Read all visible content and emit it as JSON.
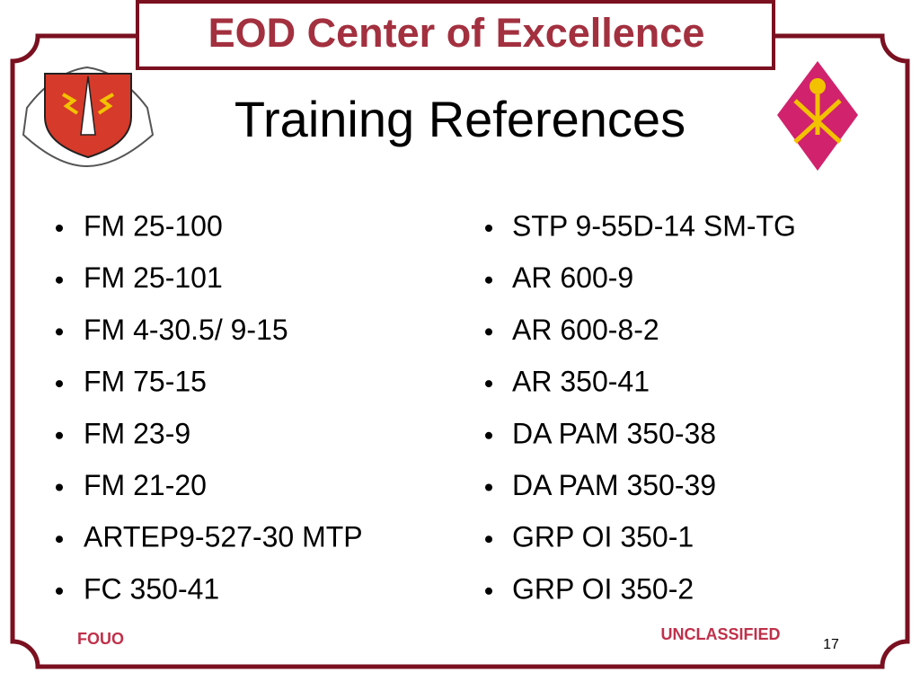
{
  "header": {
    "title": "EOD Center of Excellence"
  },
  "slide": {
    "title": "Training References",
    "left_list": [
      "FM 25-100",
      "FM 25-101",
      "FM 4-30.5/ 9-15",
      "FM 75-15",
      "FM 23-9",
      "FM 21-20",
      "ARTEP9-527-30 MTP",
      "FC 350-41"
    ],
    "right_list": [
      "STP 9-55D-14 SM-TG",
      "AR 600-9",
      "AR 600-8-2",
      "AR 350-41",
      "DA PAM 350-38",
      "DA PAM 350-39",
      "GRP OI 350-1",
      "GRP OI 350-2"
    ]
  },
  "footer": {
    "left": "FOUO",
    "right": "UNCLASSIFIED",
    "page": "17"
  }
}
